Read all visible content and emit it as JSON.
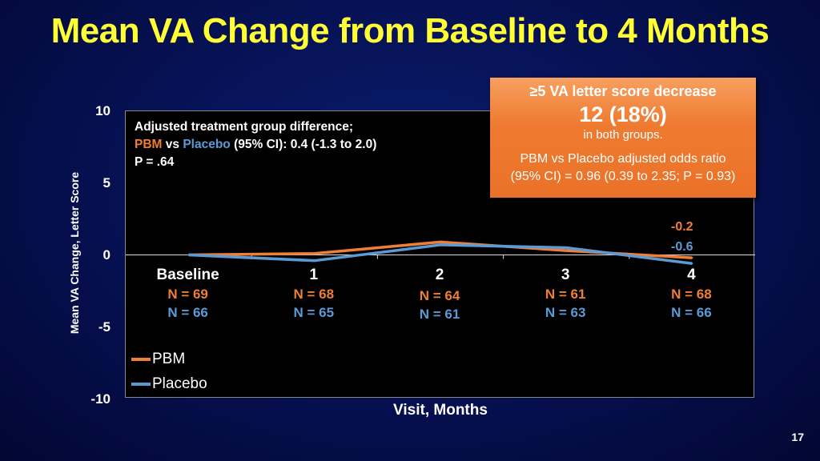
{
  "title": "Mean VA Change from Baseline to 4 Months",
  "page_number": "17",
  "annotation": {
    "line1": "Adjusted treatment group difference;",
    "pbm": "PBM",
    "vs": " vs ",
    "placebo": "Placebo",
    "ci": " (95% CI): 0.4 (-1.3 to 2.0)",
    "p": "P = .64"
  },
  "callout": {
    "heading": "≥5 VA letter score decrease",
    "value": "12 (18%)",
    "sub": "in both groups.",
    "line1": "PBM vs Placebo adjusted odds ratio",
    "line2": "(95% CI) = 0.96 (0.39 to 2.35; P = 0.93)"
  },
  "chart_data": {
    "type": "line",
    "xlabel": "Visit, Months",
    "ylabel": "Mean VA Change, Letter Score",
    "ylim": [
      -10,
      10
    ],
    "yticks": [
      "10",
      "5",
      "0",
      "-5",
      "-10"
    ],
    "categories": [
      "Baseline",
      "1",
      "2",
      "3",
      "4"
    ],
    "series": [
      {
        "name": "PBM",
        "color": "#f07f35",
        "values": [
          0,
          0.1,
          0.9,
          0.3,
          -0.2
        ],
        "n": [
          "N = 69",
          "N = 68",
          "N = 64",
          "N = 61",
          "N = 68"
        ],
        "end_label": "-0.2"
      },
      {
        "name": "Placebo",
        "color": "#5b9bd5",
        "values": [
          0,
          -0.4,
          0.7,
          0.5,
          -0.6
        ],
        "n": [
          "N = 66",
          "N = 65",
          "N = 61",
          "N = 63",
          "N = 66"
        ],
        "end_label": "-0.6"
      }
    ],
    "legend": "bottom-left"
  }
}
